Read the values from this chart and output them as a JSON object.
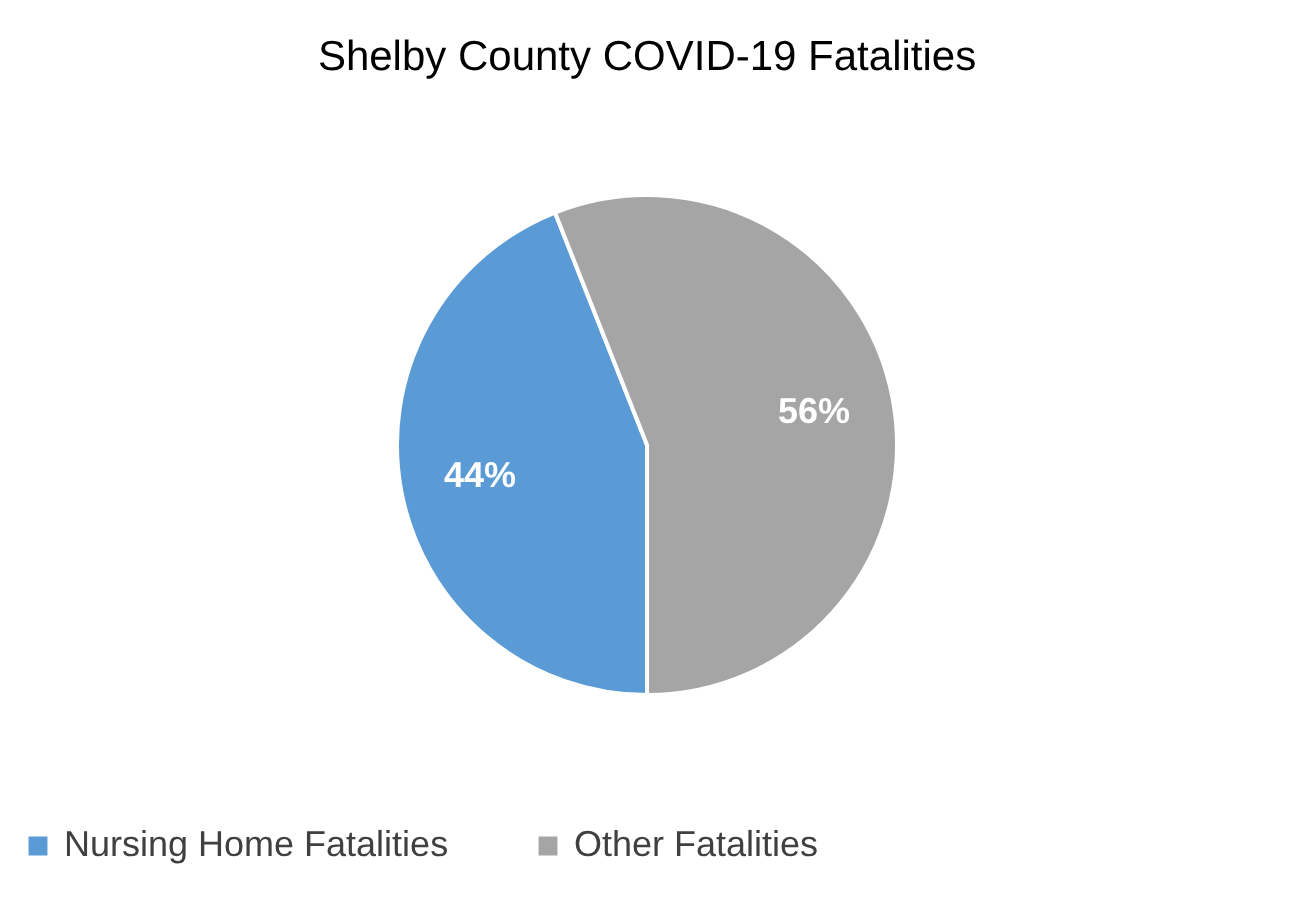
{
  "chart_data": {
    "type": "pie",
    "title": "Shelby County COVID-19 Fatalities",
    "categories": [
      "Nursing Home Fatalities",
      "Other Fatalities"
    ],
    "values": [
      44,
      56
    ],
    "colors": [
      "#5b9bd5",
      "#a5a5a5"
    ],
    "value_labels": [
      "44%",
      "56%"
    ],
    "legend": "bottom"
  }
}
